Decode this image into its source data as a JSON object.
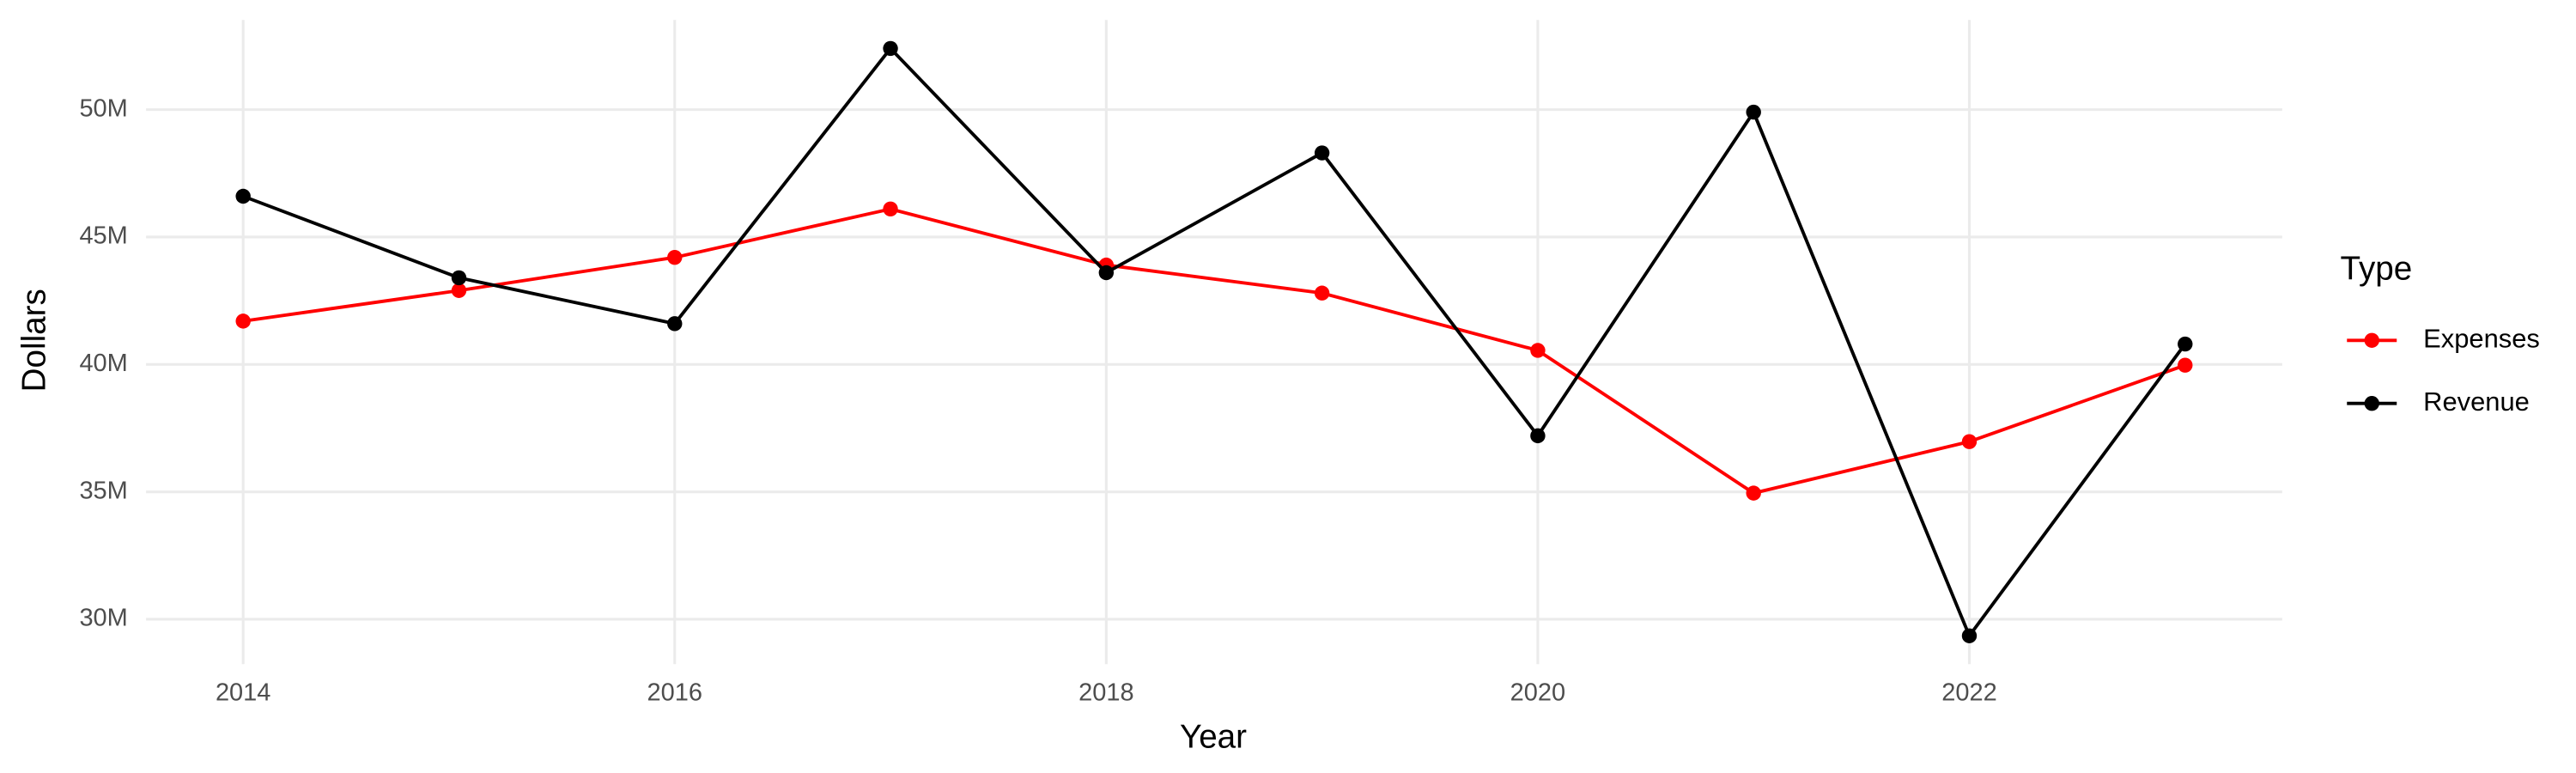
{
  "chart_data": {
    "type": "line",
    "x_label": "Year",
    "y_label": "Dollars",
    "legend_title": "Type",
    "x": [
      2014,
      2015,
      2016,
      2017,
      2018,
      2019,
      2020,
      2021,
      2022,
      2023
    ],
    "series": [
      {
        "name": "Expenses",
        "color": "#ff0000",
        "values": [
          41700000,
          42900000,
          44200000,
          46100000,
          43900000,
          42800000,
          40550000,
          34950000,
          36970000,
          39970000
        ]
      },
      {
        "name": "Revenue",
        "color": "#000000",
        "values": [
          46600000,
          43400000,
          41600000,
          52400000,
          43600000,
          48300000,
          37200000,
          49900000,
          29350000,
          40800000
        ]
      }
    ],
    "xlim": [
      2013.55,
      2023.45
    ],
    "xticks": [
      2014,
      2016,
      2018,
      2020,
      2022
    ],
    "ylim": [
      28240000,
      53520000
    ],
    "yticks": [
      {
        "value": 30000000,
        "label": "30M"
      },
      {
        "value": 35000000,
        "label": "35M"
      },
      {
        "value": 40000000,
        "label": "40M"
      },
      {
        "value": 45000000,
        "label": "45M"
      },
      {
        "value": 50000000,
        "label": "50M"
      }
    ],
    "grid": true,
    "legend_position": "right"
  }
}
